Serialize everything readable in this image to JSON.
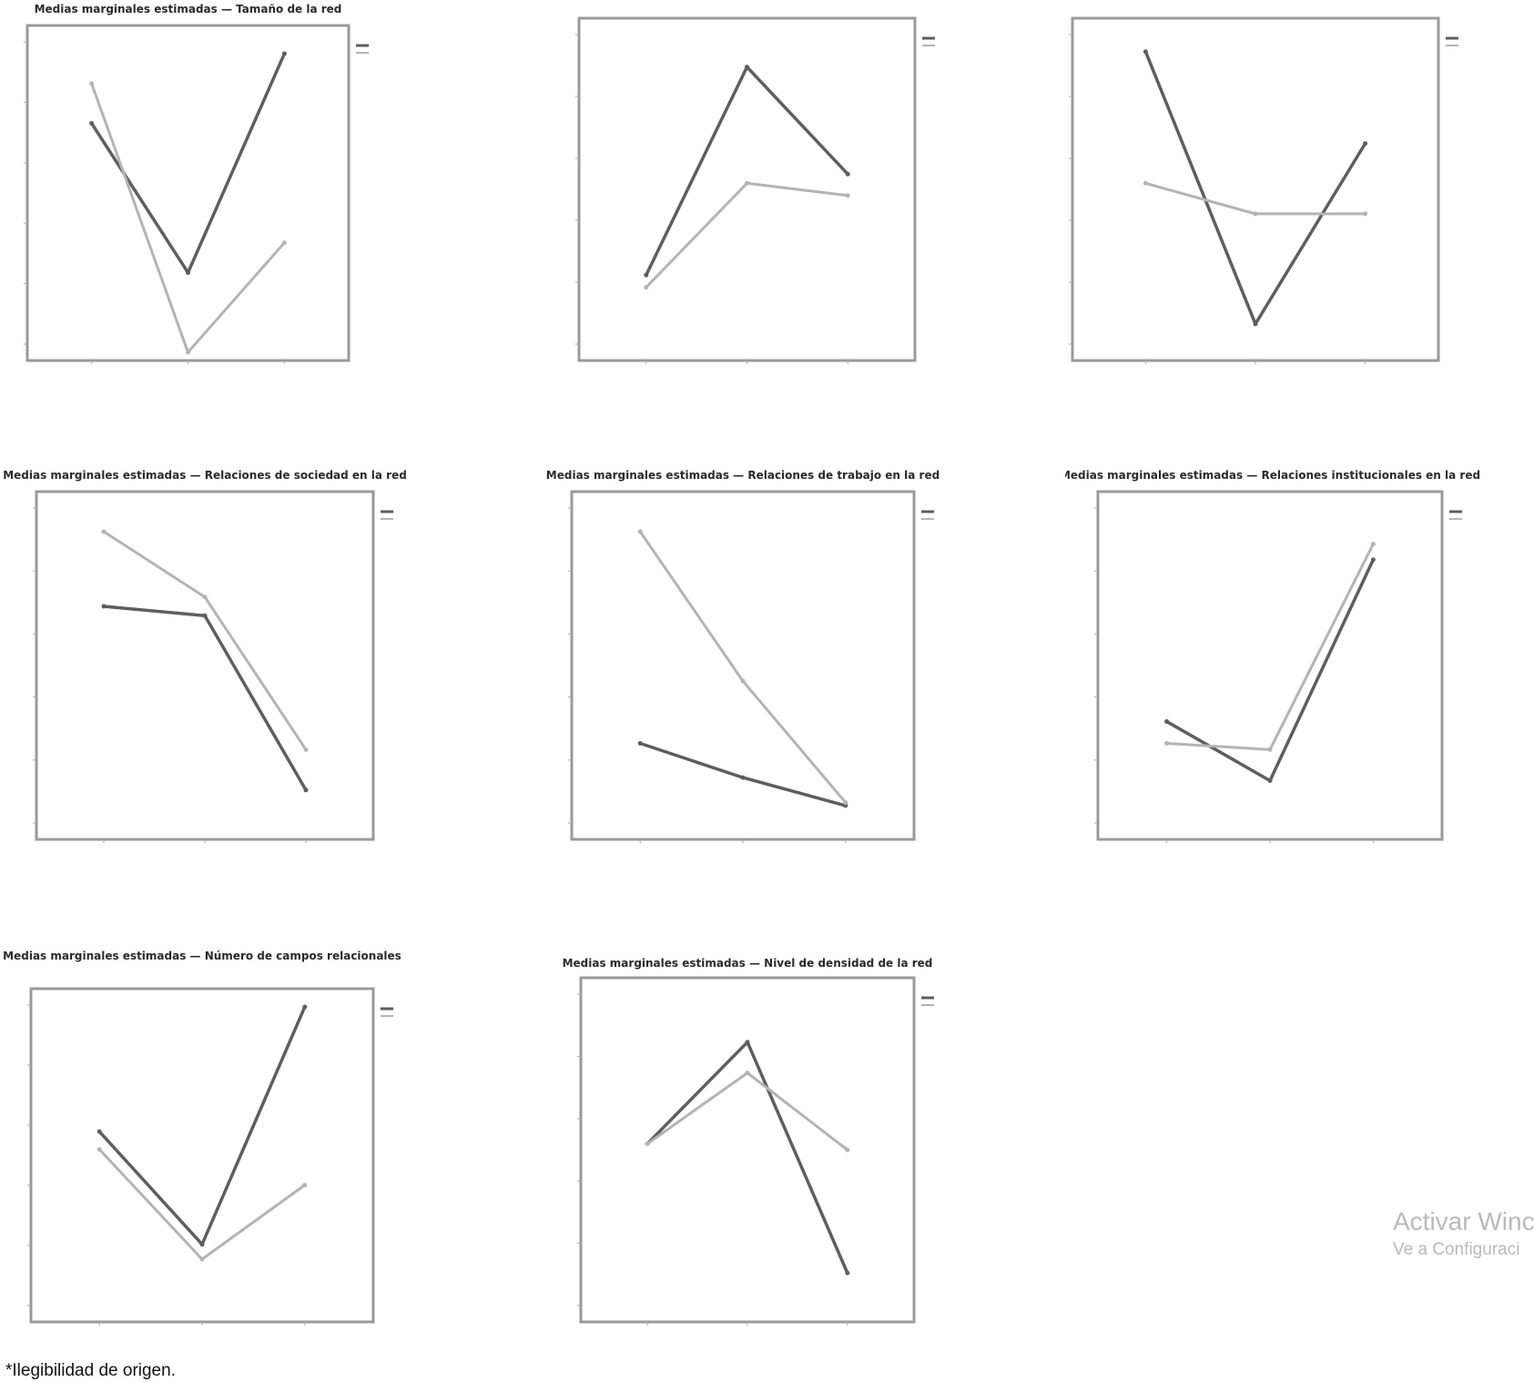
{
  "footnote": "*Ilegibilidad de origen.",
  "watermark": {
    "line1": "Activar Winc",
    "line2": "Ve a Configuraci"
  },
  "colors": {
    "series1": "#5e5e5e",
    "series2": "#b4b4b4",
    "frame": "#9a9a9a"
  },
  "chart_data": [
    {
      "type": "line",
      "title": "Medias marginales estimadas — Tamaño de la red",
      "categories": [
        "",
        "",
        ""
      ],
      "ylim": [
        70,
        100
      ],
      "grid": false,
      "legend": "right",
      "series": [
        {
          "values": [
            92,
            77,
            99
          ],
          "labels": [
            "",
            "",
            ""
          ]
        },
        {
          "values": [
            96,
            69,
            80
          ],
          "labels": [
            "",
            "",
            ""
          ]
        }
      ]
    },
    {
      "type": "line",
      "title": "",
      "categories": [
        "",
        "",
        ""
      ],
      "ylim": [
        0,
        100
      ],
      "grid": false,
      "legend": "right",
      "series": [
        {
          "values": [
            22,
            90,
            55
          ],
          "labels": [
            "",
            "",
            ""
          ]
        },
        {
          "values": [
            18,
            52,
            48
          ],
          "labels": [
            "",
            "",
            ""
          ]
        }
      ]
    },
    {
      "type": "line",
      "title": "",
      "categories": [
        "",
        "",
        ""
      ],
      "ylim": [
        0,
        100
      ],
      "grid": false,
      "legend": "right",
      "series": [
        {
          "values": [
            95,
            6,
            65
          ],
          "labels": [
            "",
            "",
            ""
          ]
        },
        {
          "values": [
            52,
            42,
            42
          ],
          "labels": [
            "",
            "",
            ""
          ]
        }
      ]
    },
    {
      "type": "line",
      "title": "Medias marginales estimadas — Relaciones de sociedad en la red",
      "categories": [
        "",
        "",
        ""
      ],
      "ylim": [
        0,
        100
      ],
      "grid": false,
      "legend": "right",
      "series": [
        {
          "values": [
            69,
            66,
            10
          ],
          "labels": [
            "",
            "",
            ""
          ]
        },
        {
          "values": [
            93,
            72,
            23
          ],
          "labels": [
            "",
            "",
            ""
          ]
        }
      ]
    },
    {
      "type": "line",
      "title": "Medias marginales estimadas — Relaciones de trabajo en la red",
      "categories": [
        "",
        "",
        ""
      ],
      "ylim": [
        0,
        100
      ],
      "grid": false,
      "legend": "right",
      "series": [
        {
          "values": [
            25,
            14,
            5
          ],
          "labels": [
            "",
            "",
            ""
          ]
        },
        {
          "values": [
            93,
            45,
            6
          ],
          "labels": [
            "",
            "",
            ""
          ]
        }
      ]
    },
    {
      "type": "line",
      "title": "Medias marginales estimadas — Relaciones institucionales en la red",
      "categories": [
        "",
        "",
        ""
      ],
      "ylim": [
        0,
        100
      ],
      "grid": false,
      "legend": "right",
      "series": [
        {
          "values": [
            32,
            13,
            84
          ],
          "labels": [
            "",
            "",
            ""
          ]
        },
        {
          "values": [
            25,
            23,
            89
          ],
          "labels": [
            "",
            "",
            ""
          ]
        }
      ]
    },
    {
      "type": "line",
      "title": "Medias marginales estimadas — Número de campos relacionales",
      "categories": [
        "",
        "",
        ""
      ],
      "ylim": [
        0,
        100
      ],
      "grid": false,
      "legend": "right",
      "series": [
        {
          "values": [
            58,
            20,
            100
          ],
          "labels": [
            "",
            "",
            ""
          ]
        },
        {
          "values": [
            52,
            15,
            40
          ],
          "labels": [
            "",
            "",
            ""
          ]
        }
      ]
    },
    {
      "type": "line",
      "title": "Medias marginales estimadas — Nivel de densidad de la red",
      "categories": [
        "",
        "",
        ""
      ],
      "ylim": [
        0,
        100
      ],
      "grid": false,
      "legend": "right",
      "series": [
        {
          "values": [
            52,
            85,
            10
          ],
          "labels": [
            "",
            "",
            ""
          ]
        },
        {
          "values": [
            52,
            75,
            50
          ],
          "labels": [
            "",
            "",
            ""
          ]
        }
      ]
    }
  ]
}
